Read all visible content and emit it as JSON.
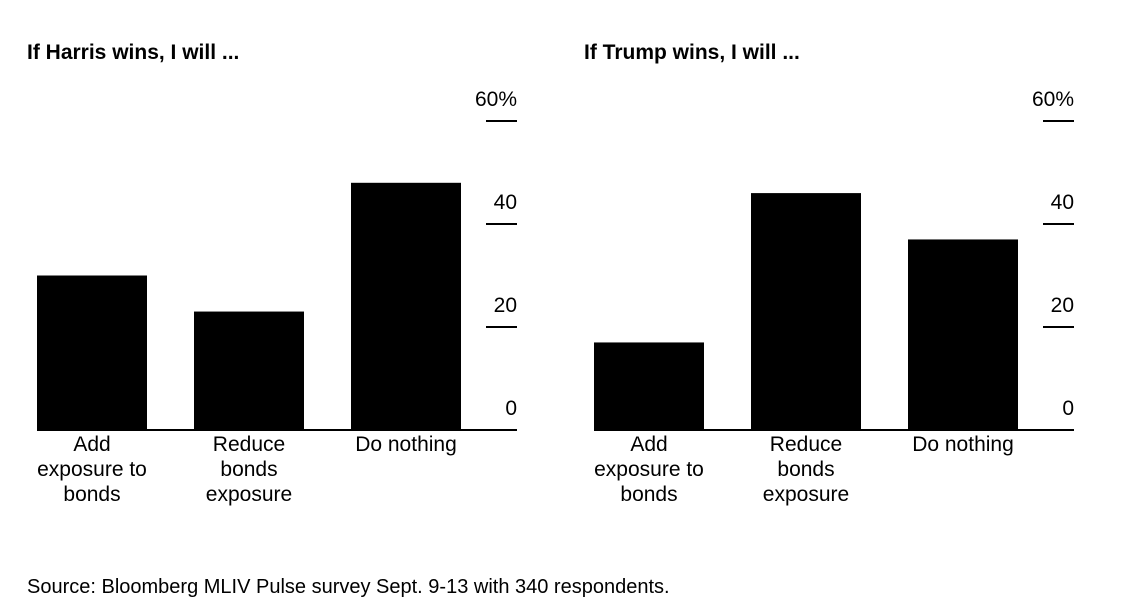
{
  "chart_data": [
    {
      "type": "bar",
      "title": "If Harris wins, I will ...",
      "categories": [
        "Add exposure to bonds",
        "Reduce bonds exposure",
        "Do nothing"
      ],
      "category_lines": [
        [
          "Add",
          "exposure to",
          "bonds"
        ],
        [
          "Reduce",
          "bonds",
          "exposure"
        ],
        [
          "Do nothing"
        ]
      ],
      "values": [
        30,
        23,
        48
      ],
      "ylim": [
        0,
        60
      ],
      "yticks": [
        0,
        20,
        40,
        60
      ],
      "ytick_labels": [
        "0",
        "20",
        "40",
        "60%"
      ],
      "ylabel": "",
      "xlabel": "",
      "grid": false,
      "bar_color": "#000000"
    },
    {
      "type": "bar",
      "title": "If Trump wins, I will ...",
      "categories": [
        "Add exposure to bonds",
        "Reduce bonds exposure",
        "Do nothing"
      ],
      "category_lines": [
        [
          "Add",
          "exposure to",
          "bonds"
        ],
        [
          "Reduce",
          "bonds",
          "exposure"
        ],
        [
          "Do nothing"
        ]
      ],
      "values": [
        17,
        46,
        37
      ],
      "ylim": [
        0,
        60
      ],
      "yticks": [
        0,
        20,
        40,
        60
      ],
      "ytick_labels": [
        "0",
        "20",
        "40",
        "60%"
      ],
      "ylabel": "",
      "xlabel": "",
      "grid": false,
      "bar_color": "#000000"
    }
  ],
  "source": "Source: Bloomberg MLIV Pulse survey Sept. 9-13 with 340 respondents."
}
